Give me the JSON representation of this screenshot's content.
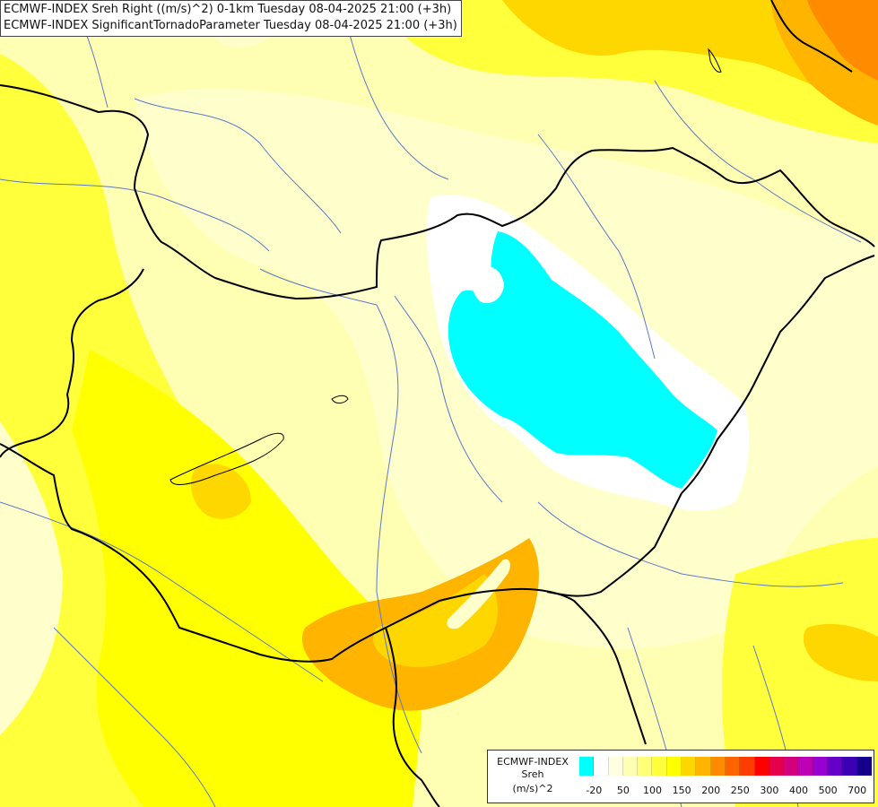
{
  "header": {
    "line1": "ECMWF-INDEX Sreh Right ((m/s)^2) 0-1km Tuesday 08-04-2025 21:00 (+3h)",
    "line2": "ECMWF-INDEX SignificantTornadoParameter Tuesday 08-04-2025 21:00 (+3h)"
  },
  "legend": {
    "title_line1": "ECMWF-INDEX",
    "title_line2": "Sreh",
    "title_line3": "(m/s)^2",
    "colors": [
      "#00ffff",
      "#ffffff",
      "#ffffe0",
      "#ffffb4",
      "#ffff78",
      "#ffff3c",
      "#ffff00",
      "#ffd700",
      "#ffb400",
      "#ff8c00",
      "#ff6400",
      "#ff3c00",
      "#ff0000",
      "#e6004b",
      "#d2007d",
      "#be00b4",
      "#9600d2",
      "#6400c8",
      "#3c00b4",
      "#14008c"
    ],
    "ticks": [
      {
        "label": "-20",
        "at": 1
      },
      {
        "label": "50",
        "at": 3
      },
      {
        "label": "100",
        "at": 5
      },
      {
        "label": "150",
        "at": 7
      },
      {
        "label": "200",
        "at": 9
      },
      {
        "label": "250",
        "at": 11
      },
      {
        "label": "300",
        "at": 13
      },
      {
        "label": "400",
        "at": 15
      },
      {
        "label": "500",
        "at": 17
      },
      {
        "label": "700",
        "at": 19
      }
    ]
  },
  "map": {
    "background_color": "#ffffb4",
    "shade_colors": {
      "pale": "#ffffcc",
      "light": "#ffff78",
      "mid": "#ffff3c",
      "yellow": "#ffff00",
      "gold": "#ffd700",
      "orange": "#ffb400",
      "deep_orange": "#ff8c00",
      "cyan": "#00ffff",
      "white": "#ffffff",
      "border": "#000000",
      "river": "#5a78c8"
    }
  }
}
